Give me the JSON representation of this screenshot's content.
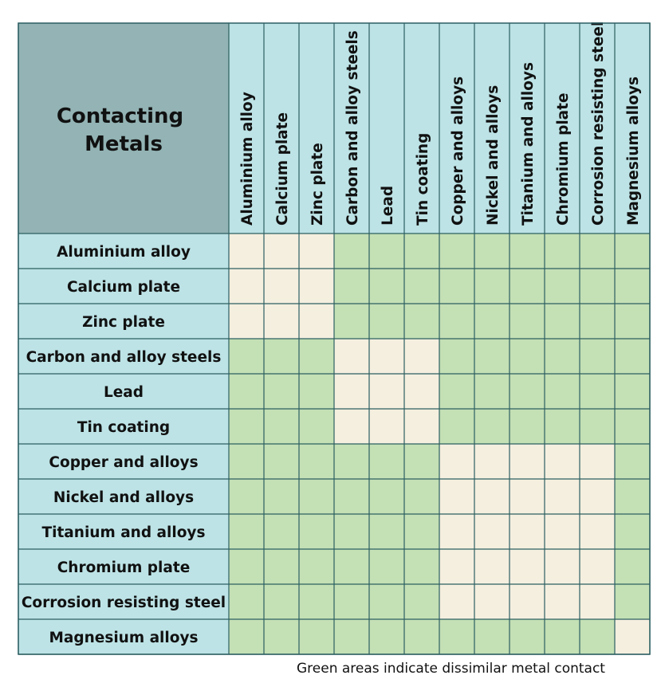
{
  "corner": {
    "title_lines": [
      "Contacting",
      "Metals"
    ]
  },
  "caption": "Green areas indicate dissimilar metal contact",
  "colors": {
    "corner_fill": "#93b3b4",
    "header_fill": "#bde3e6",
    "dissimilar_fill": "#c4e0b5",
    "compatible_fill": "#f5efdf",
    "border": "#2c5f62",
    "text": "#111111"
  },
  "chart_data": {
    "type": "heatmap",
    "title": "",
    "columns": [
      "Aluminium alloy",
      "Calcium plate",
      "Zinc plate",
      "Carbon and alloy steels",
      "Lead",
      "Tin coating",
      "Copper and alloys",
      "Nickel and alloys",
      "Titanium and alloys",
      "Chromium plate",
      "Corrosion resisting steel",
      "Magnesium alloys"
    ],
    "rows": [
      "Aluminium alloy",
      "Calcium plate",
      "Zinc plate",
      "Carbon and alloy steels",
      "Lead",
      "Tin coating",
      "Copper and alloys",
      "Nickel and alloys",
      "Titanium and alloys",
      "Chromium plate",
      "Corrosion resisting steel",
      "Magnesium alloys"
    ],
    "values": [
      [
        0,
        0,
        0,
        1,
        1,
        1,
        1,
        1,
        1,
        1,
        1,
        1
      ],
      [
        0,
        0,
        0,
        1,
        1,
        1,
        1,
        1,
        1,
        1,
        1,
        1
      ],
      [
        0,
        0,
        0,
        1,
        1,
        1,
        1,
        1,
        1,
        1,
        1,
        1
      ],
      [
        1,
        1,
        1,
        0,
        0,
        0,
        1,
        1,
        1,
        1,
        1,
        1
      ],
      [
        1,
        1,
        1,
        0,
        0,
        0,
        1,
        1,
        1,
        1,
        1,
        1
      ],
      [
        1,
        1,
        1,
        0,
        0,
        0,
        1,
        1,
        1,
        1,
        1,
        1
      ],
      [
        1,
        1,
        1,
        1,
        1,
        1,
        0,
        0,
        0,
        0,
        0,
        1
      ],
      [
        1,
        1,
        1,
        1,
        1,
        1,
        0,
        0,
        0,
        0,
        0,
        1
      ],
      [
        1,
        1,
        1,
        1,
        1,
        1,
        0,
        0,
        0,
        0,
        0,
        1
      ],
      [
        1,
        1,
        1,
        1,
        1,
        1,
        0,
        0,
        0,
        0,
        0,
        1
      ],
      [
        1,
        1,
        1,
        1,
        1,
        1,
        0,
        0,
        0,
        0,
        0,
        1
      ],
      [
        1,
        1,
        1,
        1,
        1,
        1,
        1,
        1,
        1,
        1,
        1,
        0
      ]
    ],
    "value_legend": "1 = green (dissimilar metal contact), 0 = cream (compatible)"
  }
}
